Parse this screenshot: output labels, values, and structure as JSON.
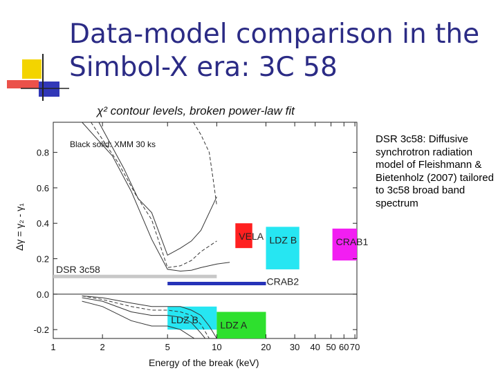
{
  "slide": {
    "title_line1": "Data-model comparison in the",
    "title_line2": "Simbol-X era: 3C 58",
    "side_text": "DSR 3c58: Diffusive synchrotron radiation model of Fleishmann & Bietenholz (2007) tailored to 3c58 broad band spectrum",
    "colors": {
      "title": "#2b2b85",
      "logo_yellow": "#f3d400",
      "logo_blue": "#3238b8",
      "logo_red": "#e8322a"
    }
  },
  "chart_data": {
    "type": "line",
    "title": "χ² contour levels, broken power-law fit",
    "xlabel": "Energy of the break (keV)",
    "ylabel": "Δγ = γ₂ - γ₁",
    "x_scale": "log",
    "xlim": [
      1,
      72
    ],
    "ylim": [
      -0.25,
      0.97
    ],
    "x_ticks": [
      {
        "value": 1,
        "label": "1"
      },
      {
        "value": 2,
        "label": "2"
      },
      {
        "value": 5,
        "label": "5"
      },
      {
        "value": 10,
        "label": "10"
      },
      {
        "value": 20,
        "label": "20"
      },
      {
        "value": 30,
        "label": "30"
      },
      {
        "value": 40,
        "label": "40"
      },
      {
        "value": 50,
        "label": "50"
      },
      {
        "value": 60,
        "label": "60"
      },
      {
        "value": 70,
        "label": "70"
      }
    ],
    "y_ticks": [
      {
        "value": -0.2,
        "label": "-0.2"
      },
      {
        "value": 0.0,
        "label": "0.0"
      },
      {
        "value": 0.2,
        "label": "0.2"
      },
      {
        "value": 0.4,
        "label": "0.4"
      },
      {
        "value": 0.6,
        "label": "0.6"
      },
      {
        "value": 0.8,
        "label": "0.8"
      }
    ],
    "annotation": "Black solid: XMM 30 ks",
    "reference_line_y": 0.0,
    "contours_upper": [
      {
        "style": "solid",
        "points": [
          [
            1.5,
            0.97
          ],
          [
            2.3,
            0.78
          ],
          [
            3.0,
            0.58
          ],
          [
            4.0,
            0.31
          ],
          [
            5.0,
            0.14
          ],
          [
            6.0,
            0.13
          ],
          [
            7.0,
            0.135
          ],
          [
            8.0,
            0.15
          ],
          [
            10.0,
            0.17
          ],
          [
            12.0,
            0.18
          ]
        ]
      },
      {
        "style": "dashed",
        "points": [
          [
            1.7,
            0.97
          ],
          [
            2.5,
            0.74
          ],
          [
            3.2,
            0.56
          ],
          [
            4.0,
            0.42
          ],
          [
            5.0,
            0.15
          ],
          [
            6.0,
            0.16
          ],
          [
            7.0,
            0.19
          ],
          [
            8.0,
            0.24
          ],
          [
            10.0,
            0.3
          ]
        ]
      },
      {
        "style": "solid",
        "points": [
          [
            1.9,
            0.97
          ],
          [
            2.7,
            0.71
          ],
          [
            3.3,
            0.54
          ],
          [
            4.0,
            0.46
          ],
          [
            5.0,
            0.22
          ],
          [
            6.0,
            0.26
          ],
          [
            7.0,
            0.3
          ],
          [
            8.0,
            0.36
          ],
          [
            10.0,
            0.55
          ]
        ]
      },
      {
        "style": "dashed",
        "points": [
          [
            7.2,
            0.97
          ],
          [
            8.0,
            0.9
          ],
          [
            9.0,
            0.8
          ],
          [
            9.5,
            0.65
          ],
          [
            10.0,
            0.5
          ]
        ]
      }
    ],
    "contours_lower": [
      {
        "style": "solid",
        "points": [
          [
            1.5,
            -0.01
          ],
          [
            2.0,
            -0.02
          ],
          [
            3.0,
            -0.05
          ],
          [
            4.0,
            -0.07
          ],
          [
            5.0,
            -0.07
          ],
          [
            6.0,
            -0.07
          ],
          [
            7.0,
            -0.09
          ],
          [
            8.0,
            -0.12
          ],
          [
            9.0,
            -0.18
          ],
          [
            10.0,
            -0.25
          ]
        ]
      },
      {
        "style": "solid",
        "points": [
          [
            1.5,
            -0.02
          ],
          [
            2.0,
            -0.04
          ],
          [
            3.0,
            -0.1
          ],
          [
            4.0,
            -0.12
          ],
          [
            5.0,
            -0.12
          ],
          [
            6.0,
            -0.13
          ],
          [
            7.0,
            -0.16
          ],
          [
            8.0,
            -0.22
          ],
          [
            8.5,
            -0.25
          ]
        ]
      },
      {
        "style": "solid",
        "points": [
          [
            1.5,
            -0.04
          ],
          [
            2.0,
            -0.07
          ],
          [
            3.0,
            -0.15
          ],
          [
            4.0,
            -0.18
          ],
          [
            5.0,
            -0.18
          ],
          [
            6.0,
            -0.2
          ],
          [
            7.0,
            -0.24
          ],
          [
            7.3,
            -0.25
          ]
        ]
      },
      {
        "style": "dashed",
        "points": [
          [
            1.5,
            -0.01
          ],
          [
            2.0,
            -0.03
          ],
          [
            3.0,
            -0.07
          ],
          [
            4.0,
            -0.09
          ],
          [
            5.0,
            -0.09
          ],
          [
            6.0,
            -0.1
          ],
          [
            7.0,
            -0.12
          ],
          [
            8.0,
            -0.17
          ],
          [
            9.0,
            -0.25
          ]
        ]
      }
    ],
    "bands": [
      {
        "label": "DSR 3c58",
        "color": "#c8c8c8",
        "x": [
          1.0,
          10.0
        ],
        "y": 0.1
      },
      {
        "label": "CRAB2",
        "color": "#2633b8",
        "x": [
          5.0,
          20.0
        ],
        "y": 0.06
      }
    ],
    "boxes": [
      {
        "label": "VELA",
        "color": "#ff2020",
        "x": [
          13.0,
          16.5
        ],
        "y": [
          0.26,
          0.4
        ]
      },
      {
        "label": "LDZ B",
        "color": "#26e6f2",
        "x": [
          20.0,
          32.0
        ],
        "y": [
          0.14,
          0.38
        ]
      },
      {
        "label": "CRAB1",
        "color": "#f21ef2",
        "x": [
          51.0,
          72.0
        ],
        "y": [
          0.19,
          0.37
        ]
      },
      {
        "label": "LDZ B",
        "color": "#26e6f2",
        "x": [
          5.0,
          10.0
        ],
        "y": [
          -0.2,
          -0.07
        ]
      },
      {
        "label": "LDZ A",
        "color": "#2ee02e",
        "x": [
          10.0,
          20.0
        ],
        "y": [
          -0.25,
          -0.1
        ]
      }
    ]
  }
}
